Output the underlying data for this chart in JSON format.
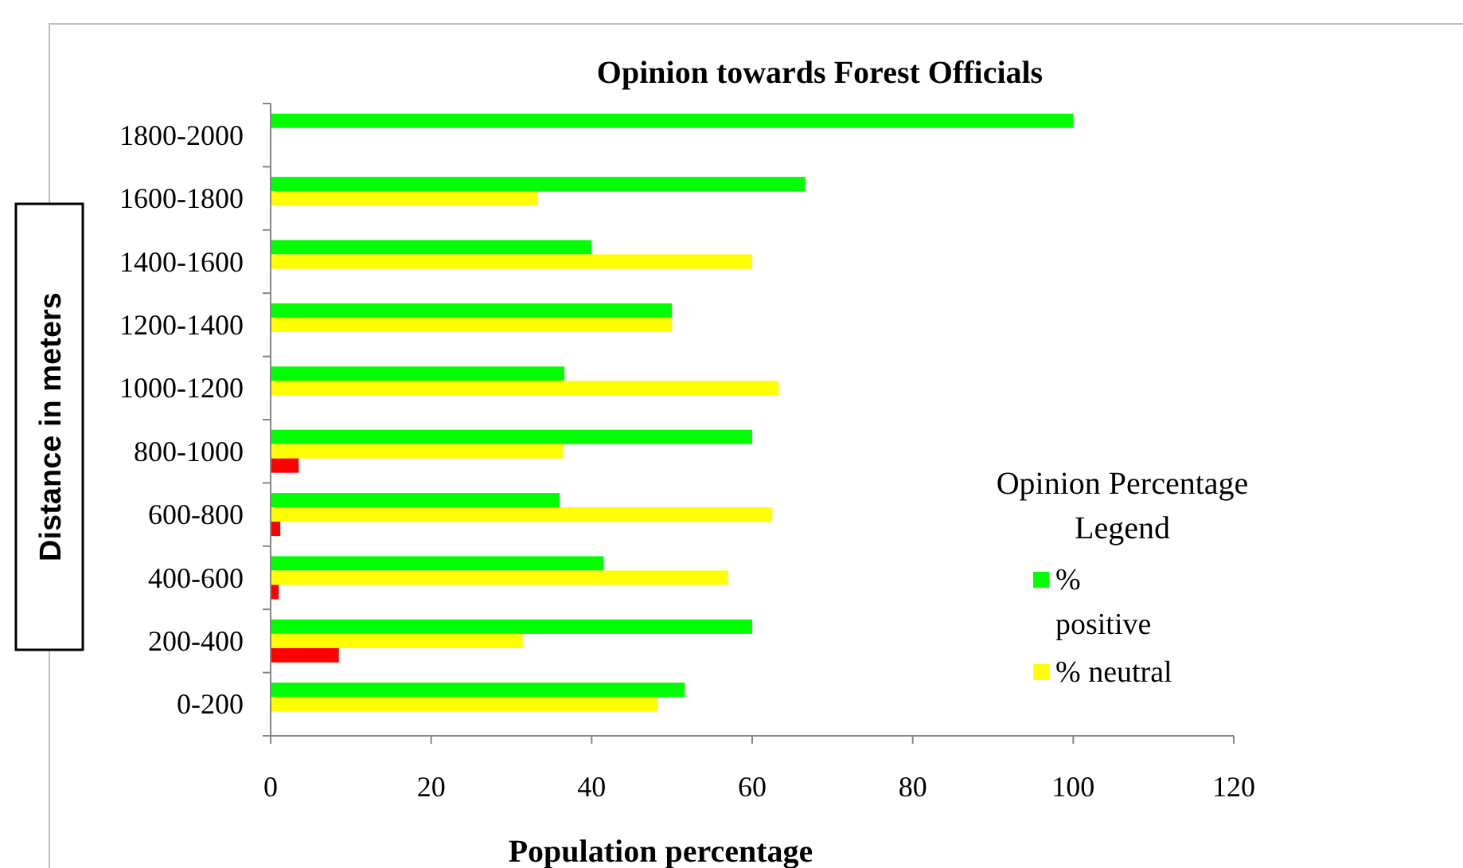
{
  "chart_data": {
    "type": "bar",
    "orientation": "horizontal",
    "title": "Opinion towards Forest Officials",
    "xlabel": "Population percentage",
    "ylabel": "Distance in meters",
    "legend_title": "Opinion Percentage Legend",
    "legend": "right",
    "categories": [
      "1800-2000",
      "1600-1800",
      "1400-1600",
      "1200-1400",
      "1000-1200",
      "800-1000",
      "600-800",
      "400-600",
      "200-400",
      "0-200"
    ],
    "series": [
      {
        "name": "% positive",
        "color": "#00ff00",
        "values": [
          100,
          66.6,
          40,
          50,
          36.6,
          60,
          36,
          41.5,
          60,
          51.6
        ]
      },
      {
        "name": "% neutral",
        "color": "#ffff00",
        "values": [
          null,
          33.3,
          60,
          50,
          63.3,
          36.4,
          62.5,
          57,
          31.4,
          48.2
        ]
      },
      {
        "color": "#ff0000",
        "values": [
          null,
          null,
          null,
          null,
          null,
          3.5,
          1.2,
          1,
          8.5,
          null
        ]
      }
    ],
    "xlim": [
      0,
      120
    ],
    "xticks": [
      0,
      20,
      40,
      60,
      80,
      100,
      120
    ],
    "grid": false
  }
}
